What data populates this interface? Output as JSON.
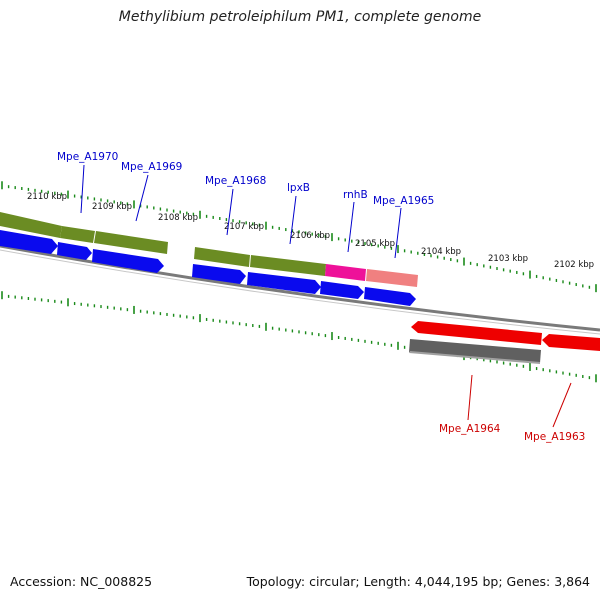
{
  "title": "Methylibium petroleiphilum PM1, complete genome",
  "footer": {
    "accession": "Accession: NC_008825",
    "stats": "Topology: circular; Length: 4,044,195 bp; Genes: 3,864"
  },
  "colors": {
    "axis_ticks": "#1a8a1a",
    "gene_label_forward": "#0000cc",
    "gene_label_reverse": "#cc0000",
    "gene_label_line_forward": "#0000cc",
    "gene_label_line_reverse": "#cc0000",
    "backbone": "#7a7a7a",
    "feature_green": "#6b8c23",
    "feature_blue": "#0a0aee",
    "feature_magenta": "#ee1199",
    "feature_pink": "#f08080",
    "feature_red": "#ee0000",
    "feature_grey": "#606060"
  },
  "scale_labels_upper": [
    "2110 kbp",
    "2109 kbp",
    "2108 kbp",
    "2107 kbp",
    "2106 kbp",
    "2105 kbp",
    "2104 kbp",
    "2103 kbp",
    "2102 kbp"
  ],
  "gene_labels_upper": [
    "Mpe_A1970",
    "Mpe_A1969",
    "Mpe_A1968",
    "lpxB",
    "rnhB",
    "Mpe_A1965"
  ],
  "gene_labels_lower": [
    "Mpe_A1964",
    "Mpe_A1963"
  ],
  "icons": {
    "forward_feature": "arrow-right-icon",
    "reverse_feature": "arrow-left-icon"
  }
}
